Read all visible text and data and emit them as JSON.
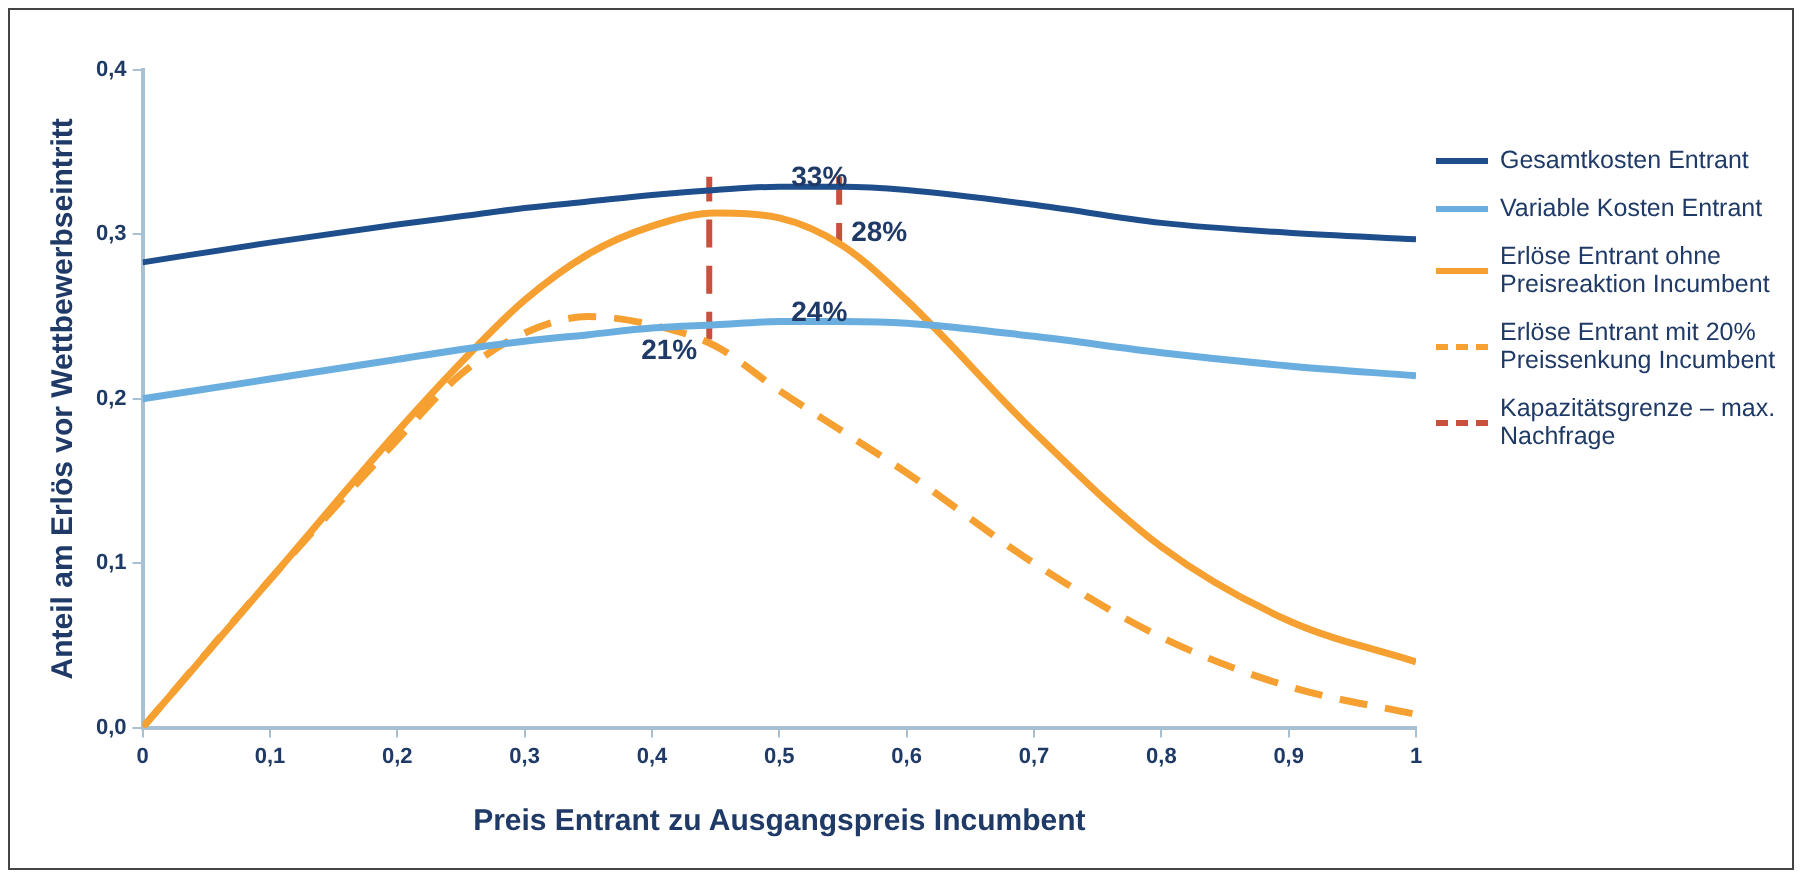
{
  "chart_data": {
    "type": "line",
    "xlabel": "Preis Entrant zu Ausgangspreis Incumbent",
    "ylabel": "Anteil am Erlös vor Wettbewerbseintritt",
    "x": [
      0,
      0.1,
      0.2,
      0.25,
      0.3,
      0.35,
      0.4,
      0.45,
      0.5,
      0.55,
      0.6,
      0.7,
      0.8,
      0.9,
      1
    ],
    "series": [
      {
        "name": "Gesamtkosten Entrant",
        "color": "#1f4e8c",
        "line_style": "solid",
        "values": [
          0.283,
          0.295,
          0.306,
          0.311,
          0.316,
          0.32,
          0.324,
          0.327,
          0.329,
          0.329,
          0.327,
          0.318,
          0.307,
          0.301,
          0.297
        ]
      },
      {
        "name": "Variable Kosten Entrant",
        "color": "#6aaee0",
        "line_style": "solid",
        "values": [
          0.2,
          0.212,
          0.224,
          0.23,
          0.235,
          0.239,
          0.243,
          0.245,
          0.247,
          0.247,
          0.246,
          0.238,
          0.228,
          0.22,
          0.214
        ]
      },
      {
        "name": "Erlöse Entrant ohne Preisreaktion Incumbent",
        "color": "#f5a030",
        "line_style": "solid",
        "values": [
          0,
          0.09,
          0.18,
          0.222,
          0.26,
          0.288,
          0.305,
          0.313,
          0.31,
          0.293,
          0.26,
          0.18,
          0.11,
          0.065,
          0.04
        ]
      },
      {
        "name": "Erlöse Entrant mit 20% Preissenkung Incumbent",
        "color": "#f5a030",
        "line_style": "dashed",
        "values": [
          0,
          0.09,
          0.175,
          0.215,
          0.24,
          0.25,
          0.245,
          0.232,
          0.205,
          0.18,
          0.155,
          0.1,
          0.055,
          0.025,
          0.008
        ]
      },
      {
        "name": "Kapazitätsgrenze – max. Nachfrage",
        "color": "#c8503c",
        "line_style": "dashed",
        "x": [
          0.445,
          0.445,
          0.5,
          0.547,
          0.547
        ],
        "values": [
          0.236,
          0.335,
          null,
          0.335,
          0.296
        ]
      }
    ],
    "xlim": [
      0,
      1
    ],
    "xticks": [
      0,
      {
        "value": 0.1,
        "label": "0,1"
      },
      {
        "value": 0.2,
        "label": "0,2"
      },
      {
        "value": 0.3,
        "label": "0,3"
      },
      {
        "value": 0.4,
        "label": "0,4"
      },
      {
        "value": 0.5,
        "label": "0,5"
      },
      {
        "value": 0.6,
        "label": "0,6"
      },
      {
        "value": 0.7,
        "label": "0,7"
      },
      {
        "value": 0.8,
        "label": "0,8"
      },
      {
        "value": 0.9,
        "label": "0,9"
      },
      1
    ],
    "ylim": [
      0,
      0.4
    ],
    "yticks": [
      {
        "value": 0,
        "label": "0,0"
      },
      {
        "value": 0.1,
        "label": "0,1"
      },
      {
        "value": 0.2,
        "label": "0,2"
      },
      {
        "value": 0.3,
        "label": "0,3"
      },
      {
        "value": 0.4,
        "label": "0,4"
      }
    ],
    "legend": "right",
    "marker": "none",
    "annotations": [
      {
        "text": "33%",
        "x": 0.5,
        "y": 0.329
      },
      {
        "text": "24%",
        "x": 0.5,
        "y": 0.247
      },
      {
        "text": "21%",
        "x": 0.445,
        "y": 0.236
      },
      {
        "text": "28%",
        "x": 0.547,
        "y": 0.296
      }
    ]
  }
}
